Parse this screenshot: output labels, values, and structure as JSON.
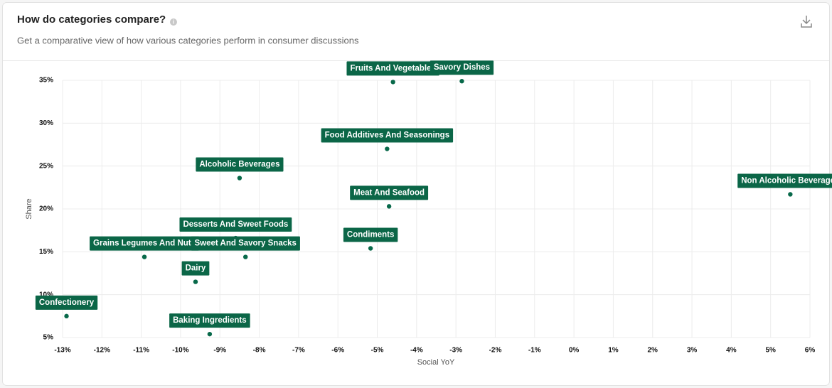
{
  "chart_data": {
    "type": "scatter",
    "title": "How do categories compare?",
    "subtitle": "Get a comparative view of how various categories perform in consumer discussions",
    "xlabel": "Social YoY",
    "ylabel": "Share",
    "xlim": [
      -13,
      6
    ],
    "xticks": [
      {
        "value": -13,
        "label": "-13%"
      },
      {
        "value": -12,
        "label": "-12%"
      },
      {
        "value": -11,
        "label": "-11%"
      },
      {
        "value": -10,
        "label": "-10%"
      },
      {
        "value": -9,
        "label": "-9%"
      },
      {
        "value": -8,
        "label": "-8%"
      },
      {
        "value": -7,
        "label": "-7%"
      },
      {
        "value": -6,
        "label": "-6%"
      },
      {
        "value": -5,
        "label": "-5%"
      },
      {
        "value": -4,
        "label": "-4%"
      },
      {
        "value": -3,
        "label": "-3%"
      },
      {
        "value": -2,
        "label": "-2%"
      },
      {
        "value": -1,
        "label": "-1%"
      },
      {
        "value": 0,
        "label": "0%"
      },
      {
        "value": 1,
        "label": "1%"
      },
      {
        "value": 2,
        "label": "2%"
      },
      {
        "value": 3,
        "label": "3%"
      },
      {
        "value": 4,
        "label": "4%"
      },
      {
        "value": 5,
        "label": "5%"
      },
      {
        "value": 6,
        "label": "6%"
      }
    ],
    "ylim": [
      5,
      35
    ],
    "yticks": [
      {
        "value": 5,
        "label": "5%"
      },
      {
        "value": 10,
        "label": "10%"
      },
      {
        "value": 15,
        "label": "15%"
      },
      {
        "value": 20,
        "label": "20%"
      },
      {
        "value": 25,
        "label": "25%"
      },
      {
        "value": 30,
        "label": "30%"
      },
      {
        "value": 35,
        "label": "35%"
      }
    ],
    "grid": true,
    "series": [
      {
        "color": "#08694a",
        "label_color": "#0b6647",
        "point_labels": [
          "Fruits And Vegetables",
          "Savory Dishes",
          "Food Additives And Seasonings",
          "Alcoholic Beverages",
          "Non Alcoholic Beverages",
          "Meat And Seafood",
          "Desserts And Sweet Foods",
          "Condiments",
          "Grains Legumes And Nuts",
          "Sweet And Savory Snacks",
          "Dairy",
          "Confectionery",
          "Baking Ingredients"
        ],
        "x": [
          -4.6,
          -2.85,
          -4.75,
          -8.5,
          5.5,
          -4.7,
          -8.6,
          -5.17,
          -10.92,
          -8.35,
          -9.62,
          -12.9,
          -9.26
        ],
        "values": [
          34.8,
          34.9,
          27.0,
          23.6,
          21.7,
          20.3,
          16.6,
          15.4,
          14.4,
          14.4,
          11.5,
          7.5,
          5.4
        ]
      }
    ]
  }
}
